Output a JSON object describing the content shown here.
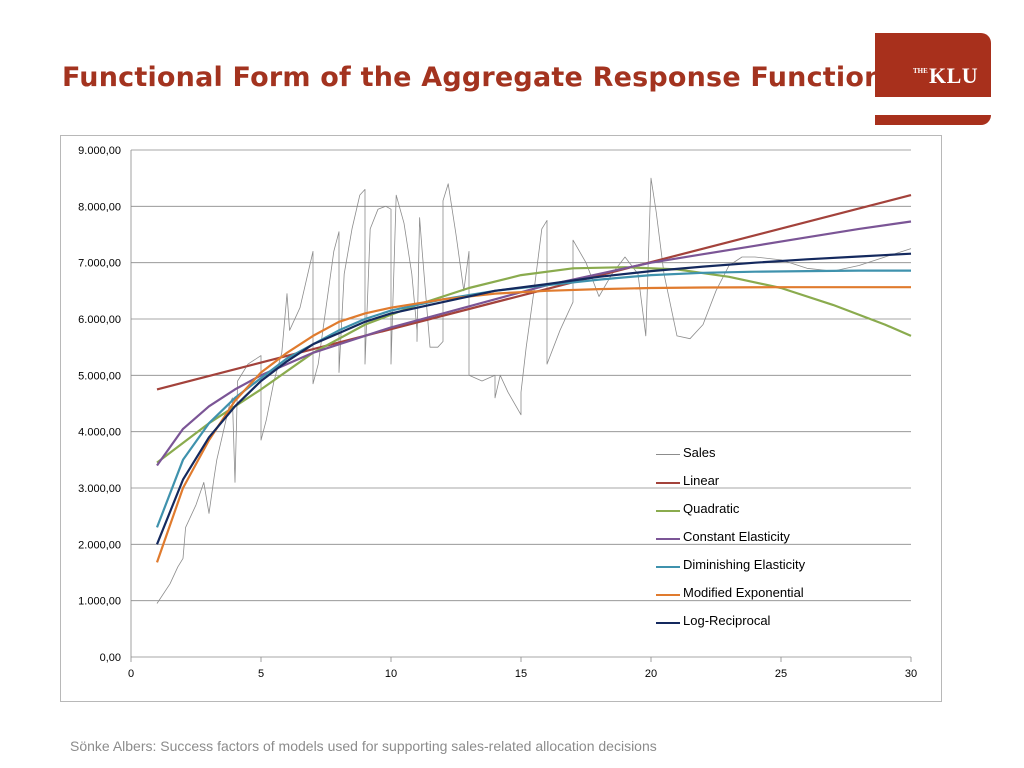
{
  "slide": {
    "title": "Functional Form of the Aggregate Response Function",
    "footer": "Sönke Albers: Success factors of models used for supporting sales-related allocation decisions"
  },
  "logo": {
    "prefix": "THE",
    "name": "KLU",
    "color": "#a8301c"
  },
  "chart_data": {
    "type": "line",
    "title": "",
    "xlabel": "",
    "ylabel": "",
    "xlim": [
      0,
      30
    ],
    "ylim": [
      0,
      9000
    ],
    "x_ticks": [
      "0",
      "5",
      "10",
      "15",
      "20",
      "25",
      "30"
    ],
    "y_ticks": [
      "0,00",
      "1.000,00",
      "2.000,00",
      "3.000,00",
      "4.000,00",
      "5.000,00",
      "6.000,00",
      "7.000,00",
      "8.000,00",
      "9.000,00"
    ],
    "grid": "horizontal",
    "legend_position": "lower-right inside plot",
    "series": [
      {
        "name": "Sales",
        "color": "#8c8c8c",
        "points": [
          [
            1,
            950
          ],
          [
            1.5,
            1300
          ],
          [
            1.8,
            1600
          ],
          [
            2,
            1750
          ],
          [
            2.1,
            2300
          ],
          [
            2.5,
            2700
          ],
          [
            2.8,
            3100
          ],
          [
            3,
            2550
          ],
          [
            3.2,
            3200
          ],
          [
            3.3,
            3500
          ],
          [
            3.5,
            3900
          ],
          [
            3.8,
            4500
          ],
          [
            3.9,
            4600
          ],
          [
            4,
            3100
          ],
          [
            4.1,
            4900
          ],
          [
            4.5,
            5200
          ],
          [
            5,
            5350
          ],
          [
            5,
            3850
          ],
          [
            5.2,
            4200
          ],
          [
            5.5,
            4900
          ],
          [
            5.8,
            5400
          ],
          [
            6,
            6450
          ],
          [
            6.1,
            5800
          ],
          [
            6.5,
            6200
          ],
          [
            6.8,
            6800
          ],
          [
            7,
            7200
          ],
          [
            7,
            4850
          ],
          [
            7.2,
            5200
          ],
          [
            7.5,
            6200
          ],
          [
            7.8,
            7200
          ],
          [
            8,
            7550
          ],
          [
            8,
            5050
          ],
          [
            8.2,
            6800
          ],
          [
            8.5,
            7600
          ],
          [
            8.8,
            8200
          ],
          [
            9,
            8300
          ],
          [
            9,
            5200
          ],
          [
            9.2,
            7600
          ],
          [
            9.5,
            7950
          ],
          [
            9.8,
            8000
          ],
          [
            10,
            7950
          ],
          [
            10,
            5200
          ],
          [
            10.2,
            8200
          ],
          [
            10.5,
            7700
          ],
          [
            10.8,
            6800
          ],
          [
            11,
            5800
          ],
          [
            11,
            5600
          ],
          [
            11.1,
            7800
          ],
          [
            11.2,
            7200
          ],
          [
            11.5,
            5500
          ],
          [
            11.8,
            5500
          ],
          [
            12,
            5600
          ],
          [
            12,
            8100
          ],
          [
            12.2,
            8400
          ],
          [
            12.5,
            7500
          ],
          [
            12.8,
            6500
          ],
          [
            13,
            7200
          ],
          [
            13,
            5000
          ],
          [
            13.5,
            4900
          ],
          [
            14,
            5000
          ],
          [
            14,
            4600
          ],
          [
            14.2,
            5000
          ],
          [
            14.5,
            4700
          ],
          [
            15,
            4300
          ],
          [
            15,
            4700
          ],
          [
            15.2,
            5500
          ],
          [
            15.5,
            6500
          ],
          [
            15.8,
            7600
          ],
          [
            16,
            7750
          ],
          [
            16,
            5200
          ],
          [
            16.5,
            5800
          ],
          [
            17,
            6300
          ],
          [
            17,
            7400
          ],
          [
            17.5,
            7000
          ],
          [
            18,
            6400
          ],
          [
            18.5,
            6800
          ],
          [
            19,
            7100
          ],
          [
            19.5,
            6800
          ],
          [
            19.8,
            5700
          ],
          [
            20,
            8500
          ],
          [
            20.2,
            7900
          ],
          [
            20.5,
            6800
          ],
          [
            21,
            5700
          ],
          [
            21.5,
            5650
          ],
          [
            22,
            5900
          ],
          [
            22.5,
            6500
          ],
          [
            23,
            6950
          ],
          [
            23.5,
            7100
          ],
          [
            24,
            7100
          ],
          [
            25,
            7050
          ],
          [
            26,
            6900
          ],
          [
            27,
            6850
          ],
          [
            28,
            6950
          ],
          [
            29,
            7100
          ],
          [
            30,
            7250
          ]
        ]
      },
      {
        "name": "Linear",
        "color": "#a3423b",
        "points": [
          [
            1,
            4750
          ],
          [
            30,
            8200
          ]
        ]
      },
      {
        "name": "Quadratic",
        "color": "#8aab4e",
        "points": [
          [
            1,
            3450
          ],
          [
            3,
            4150
          ],
          [
            5,
            4750
          ],
          [
            7,
            5400
          ],
          [
            9,
            5900
          ],
          [
            11,
            6250
          ],
          [
            13,
            6550
          ],
          [
            15,
            6780
          ],
          [
            17,
            6900
          ],
          [
            19,
            6920
          ],
          [
            21,
            6880
          ],
          [
            23,
            6750
          ],
          [
            25,
            6550
          ],
          [
            27,
            6250
          ],
          [
            29,
            5900
          ],
          [
            30,
            5700
          ]
        ]
      },
      {
        "name": "Constant Elasticity",
        "color": "#7b5596",
        "points": [
          [
            1,
            3400
          ],
          [
            2,
            4050
          ],
          [
            3,
            4450
          ],
          [
            4,
            4750
          ],
          [
            5,
            5000
          ],
          [
            6,
            5200
          ],
          [
            7,
            5400
          ],
          [
            8,
            5550
          ],
          [
            10,
            5850
          ],
          [
            12,
            6100
          ],
          [
            14,
            6350
          ],
          [
            16,
            6600
          ],
          [
            18,
            6800
          ],
          [
            20,
            7000
          ],
          [
            22,
            7150
          ],
          [
            24,
            7300
          ],
          [
            26,
            7450
          ],
          [
            28,
            7600
          ],
          [
            30,
            7730
          ]
        ]
      },
      {
        "name": "Diminishing Elasticity",
        "color": "#3f92ad",
        "points": [
          [
            1,
            2300
          ],
          [
            2,
            3500
          ],
          [
            3,
            4150
          ],
          [
            4,
            4600
          ],
          [
            5,
            4950
          ],
          [
            6,
            5300
          ],
          [
            7,
            5550
          ],
          [
            8,
            5800
          ],
          [
            9,
            6000
          ],
          [
            10,
            6150
          ],
          [
            12,
            6350
          ],
          [
            14,
            6500
          ],
          [
            16,
            6600
          ],
          [
            18,
            6700
          ],
          [
            20,
            6780
          ],
          [
            22,
            6820
          ],
          [
            24,
            6840
          ],
          [
            26,
            6850
          ],
          [
            28,
            6860
          ],
          [
            30,
            6860
          ]
        ]
      },
      {
        "name": "Modified Exponential",
        "color": "#e07b2e",
        "points": [
          [
            1,
            1680
          ],
          [
            2,
            3000
          ],
          [
            3,
            3850
          ],
          [
            4,
            4550
          ],
          [
            5,
            5050
          ],
          [
            6,
            5400
          ],
          [
            7,
            5700
          ],
          [
            8,
            5950
          ],
          [
            9,
            6100
          ],
          [
            10,
            6200
          ],
          [
            12,
            6350
          ],
          [
            14,
            6450
          ],
          [
            16,
            6500
          ],
          [
            18,
            6530
          ],
          [
            20,
            6550
          ],
          [
            22,
            6560
          ],
          [
            25,
            6565
          ],
          [
            30,
            6565
          ]
        ]
      },
      {
        "name": "Log-Reciprocal",
        "color": "#14295e",
        "points": [
          [
            1,
            2000
          ],
          [
            2,
            3150
          ],
          [
            3,
            3900
          ],
          [
            4,
            4450
          ],
          [
            5,
            4900
          ],
          [
            6,
            5250
          ],
          [
            7,
            5550
          ],
          [
            8,
            5750
          ],
          [
            9,
            5950
          ],
          [
            10,
            6100
          ],
          [
            12,
            6300
          ],
          [
            14,
            6500
          ],
          [
            16,
            6620
          ],
          [
            18,
            6750
          ],
          [
            20,
            6850
          ],
          [
            22,
            6930
          ],
          [
            24,
            7000
          ],
          [
            26,
            7060
          ],
          [
            28,
            7110
          ],
          [
            30,
            7160
          ]
        ]
      }
    ]
  }
}
